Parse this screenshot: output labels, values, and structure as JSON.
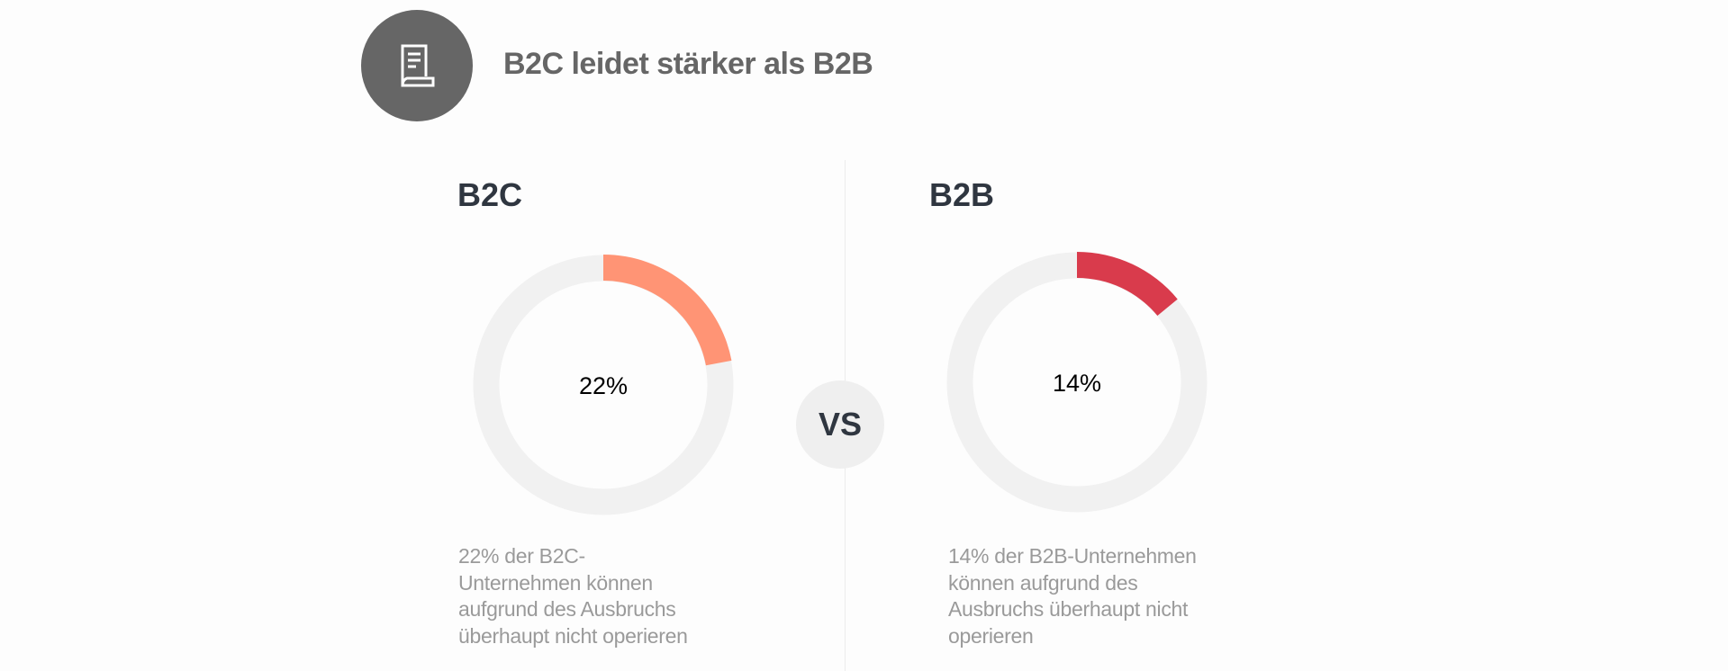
{
  "header": {
    "title": "B2C leidet stärker als B2B",
    "icon": "document-scroll-icon"
  },
  "vs_label": "VS",
  "chart_data": [
    {
      "type": "pie",
      "variant": "donut",
      "title": "B2C",
      "value": 22,
      "label": "22%",
      "color": "#ff9475",
      "track_color": "#f1f1f1",
      "description_lines": [
        "22% der B2C-",
        "Unternehmen können",
        "aufgrund des Ausbruchs",
        "überhaupt nicht operieren"
      ]
    },
    {
      "type": "pie",
      "variant": "donut",
      "title": "B2B",
      "value": 14,
      "label": "14%",
      "color": "#d93b4c",
      "track_color": "#f1f1f1",
      "description_lines": [
        "14% der B2B-Unternehmen",
        "können aufgrund des",
        "Ausbruchs überhaupt nicht",
        "operieren"
      ]
    }
  ]
}
